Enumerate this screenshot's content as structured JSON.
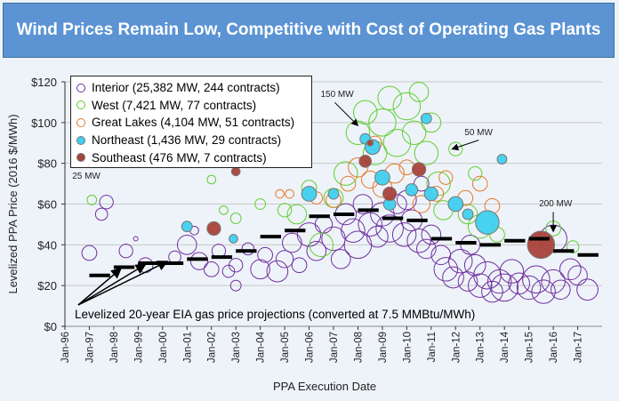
{
  "title": "Wind Prices Remain Low, Competitive with Cost of Operating Gas Plants",
  "chart_data": {
    "type": "scatter",
    "title": "Wind Prices Remain Low, Competitive with Cost of Operating Gas Plants",
    "xlabel": "PPA Execution Date",
    "ylabel": "Levelized PPA Price (2016 $/MWh)",
    "xlim": [
      1996,
      2018
    ],
    "ylim": [
      0,
      120
    ],
    "x_ticks": [
      "Jan-96",
      "Jan-97",
      "Jan-98",
      "Jan-99",
      "Jan-00",
      "Jan-01",
      "Jan-02",
      "Jan-03",
      "Jan-04",
      "Jan-05",
      "Jan-06",
      "Jan-07",
      "Jan-08",
      "Jan-09",
      "Jan-10",
      "Jan-11",
      "Jan-12",
      "Jan-13",
      "Jan-14",
      "Jan-15",
      "Jan-16",
      "Jan-17"
    ],
    "y_ticks": [
      "$0",
      "$20",
      "$40",
      "$60",
      "$80",
      "$100",
      "$120"
    ],
    "y_tick_values": [
      0,
      20,
      40,
      60,
      80,
      100,
      120
    ],
    "grid": "horizontal",
    "legend_position": "top-left",
    "point_format": [
      "date_year",
      "price_usd_per_mwh",
      "capacity_mw"
    ],
    "series": [
      {
        "name": "Interior (25,382 MW, 244 contracts)",
        "color": "#7030a0",
        "filled": false,
        "points": [
          [
            1997.0,
            36,
            60
          ],
          [
            1997.5,
            55,
            40
          ],
          [
            1997.7,
            61,
            50
          ],
          [
            1998.5,
            37,
            50
          ],
          [
            1998.9,
            43,
            5
          ],
          [
            1999.3,
            30,
            60
          ],
          [
            2000.5,
            34,
            40
          ],
          [
            2001,
            40,
            100
          ],
          [
            2001.3,
            47,
            20
          ],
          [
            2001.5,
            32,
            80
          ],
          [
            2002,
            28,
            60
          ],
          [
            2002.3,
            37,
            50
          ],
          [
            2002.7,
            27,
            40
          ],
          [
            2003,
            20,
            30
          ],
          [
            2003,
            30,
            50
          ],
          [
            2003.5,
            38,
            40
          ],
          [
            2004,
            28,
            100
          ],
          [
            2004.2,
            35,
            60
          ],
          [
            2004.7,
            27,
            120
          ],
          [
            2005,
            33,
            80
          ],
          [
            2005.3,
            41,
            100
          ],
          [
            2005.6,
            30,
            60
          ],
          [
            2006,
            45,
            150
          ],
          [
            2006.3,
            37,
            100
          ],
          [
            2006.6,
            50,
            80
          ],
          [
            2007,
            43,
            150
          ],
          [
            2007.3,
            33,
            100
          ],
          [
            2007.5,
            55,
            120
          ],
          [
            2007.8,
            47,
            150
          ],
          [
            2008,
            40,
            200
          ],
          [
            2008.2,
            60,
            100
          ],
          [
            2008.5,
            50,
            150
          ],
          [
            2008.8,
            44,
            120
          ],
          [
            2009,
            55,
            150
          ],
          [
            2009.3,
            48,
            200
          ],
          [
            2009.6,
            60,
            100
          ],
          [
            2009.9,
            45,
            150
          ],
          [
            2010.2,
            52,
            120
          ],
          [
            2010.5,
            42,
            150
          ],
          [
            2010.8,
            38,
            100
          ],
          [
            2011,
            45,
            100
          ],
          [
            2011.4,
            35,
            100
          ],
          [
            2011.6,
            28,
            150
          ],
          [
            2011.9,
            24,
            120
          ],
          [
            2012.2,
            32,
            150
          ],
          [
            2012.5,
            22,
            100
          ],
          [
            2012.8,
            30,
            120
          ],
          [
            2013,
            20,
            150
          ],
          [
            2013.3,
            25,
            200
          ],
          [
            2013.5,
            17,
            120
          ],
          [
            2013.8,
            22,
            150
          ],
          [
            2014,
            19,
            200
          ],
          [
            2014.3,
            27,
            150
          ],
          [
            2014.6,
            21,
            120
          ],
          [
            2015,
            19,
            150
          ],
          [
            2015.3,
            23,
            200
          ],
          [
            2015.6,
            17,
            150
          ],
          [
            2016,
            43,
            200
          ],
          [
            2016,
            22,
            150
          ],
          [
            2016.3,
            18,
            100
          ],
          [
            2016.7,
            28,
            120
          ],
          [
            2017,
            25,
            100
          ],
          [
            2017.4,
            18,
            120
          ],
          [
            2012.6,
            40,
            100
          ],
          [
            2010,
            62,
            100
          ],
          [
            2010.6,
            70,
            60
          ]
        ]
      },
      {
        "name": "West (7,421 MW, 77 contracts)",
        "color": "#5fcf2f",
        "filled": false,
        "points": [
          [
            1997.1,
            62,
            25
          ],
          [
            2002,
            72,
            20
          ],
          [
            2002.5,
            57,
            20
          ],
          [
            2003,
            53,
            30
          ],
          [
            2004,
            60,
            30
          ],
          [
            2005,
            57,
            50
          ],
          [
            2006,
            68,
            60
          ],
          [
            2007,
            63,
            100
          ],
          [
            2007.5,
            75,
            150
          ],
          [
            2008,
            95,
            150
          ],
          [
            2008.3,
            105,
            150
          ],
          [
            2008.7,
            85,
            150
          ],
          [
            2009,
            100,
            200
          ],
          [
            2009.3,
            112,
            150
          ],
          [
            2009.6,
            90,
            200
          ],
          [
            2010,
            108,
            200
          ],
          [
            2010.3,
            95,
            150
          ],
          [
            2010.5,
            115,
            100
          ],
          [
            2010.8,
            85,
            150
          ],
          [
            2011,
            100,
            100
          ],
          [
            2011.3,
            70,
            150
          ],
          [
            2011.5,
            57,
            100
          ],
          [
            2012,
            87,
            50
          ],
          [
            2012.5,
            55,
            100
          ],
          [
            2012.8,
            75,
            50
          ],
          [
            2013,
            49,
            150
          ],
          [
            2013.7,
            45,
            60
          ],
          [
            2016,
            48,
            60
          ],
          [
            2016.8,
            39,
            40
          ],
          [
            2006.5,
            40,
            150
          ],
          [
            2005.5,
            55,
            100
          ]
        ]
      },
      {
        "name": "Great Lakes (4,104 MW, 51 contracts)",
        "color": "#e8782a",
        "filled": false,
        "points": [
          [
            2004.8,
            65,
            20
          ],
          [
            2005.2,
            65,
            20
          ],
          [
            2006.3,
            63,
            40
          ],
          [
            2007,
            62,
            60
          ],
          [
            2007.6,
            70,
            60
          ],
          [
            2008,
            78,
            100
          ],
          [
            2008.5,
            72,
            80
          ],
          [
            2009,
            68,
            100
          ],
          [
            2009.5,
            75,
            100
          ],
          [
            2010,
            78,
            60
          ],
          [
            2010.6,
            60,
            80
          ],
          [
            2011.2,
            65,
            60
          ],
          [
            2011.6,
            73,
            50
          ],
          [
            2012.4,
            63,
            60
          ],
          [
            2013,
            70,
            60
          ],
          [
            2013.5,
            59,
            60
          ],
          [
            2008.7,
            90,
            50
          ]
        ]
      },
      {
        "name": "Northeast (1,436 MW, 29 contracts)",
        "color": "#3fd0ef",
        "filled": true,
        "points": [
          [
            2001,
            49,
            30
          ],
          [
            2002.9,
            43,
            20
          ],
          [
            2006,
            65,
            60
          ],
          [
            2007,
            65,
            30
          ],
          [
            2008.3,
            92,
            30
          ],
          [
            2008.6,
            88,
            60
          ],
          [
            2009,
            73,
            60
          ],
          [
            2009.3,
            60,
            40
          ],
          [
            2010.2,
            67,
            40
          ],
          [
            2010.8,
            102,
            30
          ],
          [
            2011,
            65,
            50
          ],
          [
            2012,
            60,
            60
          ],
          [
            2013.3,
            51,
            150
          ],
          [
            2013.9,
            82,
            25
          ],
          [
            2012.5,
            55,
            30
          ]
        ]
      },
      {
        "name": "Southeast (476 MW, 7 contracts)",
        "color": "#a8423a",
        "filled": true,
        "points": [
          [
            2002.1,
            48,
            50
          ],
          [
            2003,
            76,
            20
          ],
          [
            2008.3,
            81,
            40
          ],
          [
            2009.3,
            65,
            50
          ],
          [
            2010.5,
            77,
            50
          ],
          [
            2015.5,
            40,
            200
          ],
          [
            2008.5,
            90,
            10
          ]
        ]
      }
    ],
    "gas_projection": {
      "label": "Levelized 20-year EIA gas price projections (converted at 7.5 MMBtu/MWh)",
      "color": "#000000",
      "points": [
        [
          1997,
          25
        ],
        [
          1998,
          29
        ],
        [
          1999,
          31
        ],
        [
          2000,
          31
        ],
        [
          2001,
          33
        ],
        [
          2002,
          34
        ],
        [
          2003,
          37
        ],
        [
          2004,
          44
        ],
        [
          2005,
          47
        ],
        [
          2006,
          54
        ],
        [
          2007,
          55
        ],
        [
          2008,
          57
        ],
        [
          2009,
          53
        ],
        [
          2010,
          52
        ],
        [
          2011,
          43
        ],
        [
          2012,
          41
        ],
        [
          2013,
          40
        ],
        [
          2014,
          42
        ],
        [
          2015,
          43
        ],
        [
          2016,
          37
        ],
        [
          2017,
          35
        ]
      ]
    },
    "annotations": [
      {
        "text": "25 MW",
        "target": [
          1997.1,
          62
        ]
      },
      {
        "text": "150 MW",
        "target": [
          2008.0,
          95
        ]
      },
      {
        "text": "50 MW",
        "target": [
          2012.0,
          87
        ]
      },
      {
        "text": "200 MW",
        "target": [
          2016.0,
          43
        ]
      }
    ]
  }
}
